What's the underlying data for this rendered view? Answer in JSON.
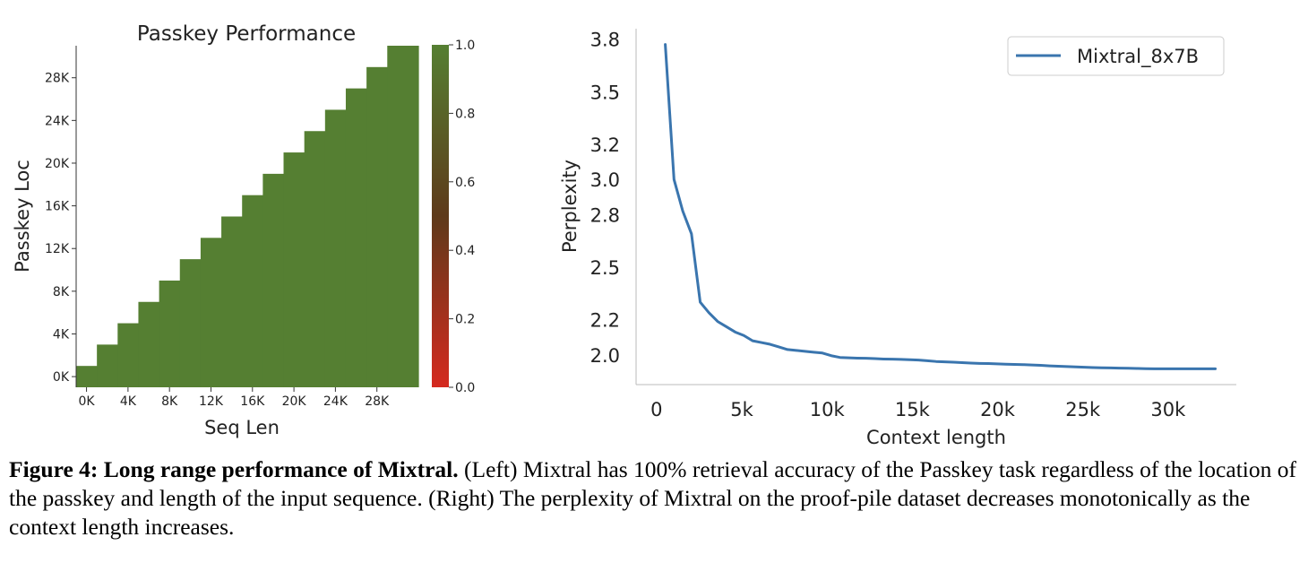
{
  "chart_data": [
    {
      "type": "heatmap",
      "title": "Passkey Performance",
      "xlabel": "Seq Len",
      "ylabel": "Passkey Loc",
      "x_ticks": [
        "0K",
        "4K",
        "8K",
        "12K",
        "16K",
        "20K",
        "24K",
        "28K"
      ],
      "y_ticks": [
        "0K",
        "4K",
        "8K",
        "12K",
        "16K",
        "20K",
        "24K",
        "28K"
      ],
      "x_range_k": [
        -1,
        32
      ],
      "y_range_k": [
        -1,
        31
      ],
      "cells": {
        "x_bin_starts_k": [
          -1,
          1,
          3,
          5,
          7,
          9,
          11,
          13,
          15,
          17,
          19,
          21,
          23,
          25,
          27,
          29
        ],
        "x_bin_ends_k": [
          1,
          3,
          5,
          7,
          9,
          11,
          13,
          15,
          17,
          19,
          21,
          23,
          25,
          27,
          29,
          32
        ],
        "filled_to_y_k": [
          1,
          3,
          5,
          7,
          9,
          11,
          13,
          15,
          17,
          19,
          21,
          23,
          25,
          27,
          29,
          31
        ],
        "value": 1.0
      },
      "colorbar": {
        "ticks": [
          "0.0",
          "0.2",
          "0.4",
          "0.6",
          "0.8",
          "1.0"
        ],
        "low_color": "#d52a1f",
        "mid_color": "#5e3a1a",
        "high_color": "#557f32"
      },
      "cell_color": "#557f32"
    },
    {
      "type": "line",
      "xlabel": "Context length",
      "ylabel": "Perplexity",
      "x_ticks": [
        "0",
        "5k",
        "10k",
        "15k",
        "20k",
        "25k",
        "30k"
      ],
      "y_ticks": [
        "2.0",
        "2.2",
        "2.5",
        "2.8",
        "3.0",
        "3.2",
        "3.5",
        "3.8"
      ],
      "xlim": [
        -1200,
        34000
      ],
      "ylim": [
        1.83,
        3.86
      ],
      "legend_position": "top-right",
      "series": [
        {
          "name": "Mixtral_8x7B",
          "color": "#3a75ae",
          "x": [
            512,
            1024,
            1536,
            2048,
            2560,
            3072,
            3584,
            4096,
            4608,
            5120,
            5632,
            6144,
            6656,
            7168,
            7680,
            8192,
            8704,
            9216,
            9728,
            10240,
            10752,
            11264,
            11776,
            12288,
            12800,
            13312,
            13824,
            14336,
            14848,
            15360,
            15872,
            16384,
            16896,
            17408,
            17920,
            18432,
            18944,
            19456,
            19968,
            20480,
            20992,
            21504,
            22016,
            22528,
            23040,
            23552,
            24064,
            24576,
            25088,
            25600,
            26112,
            26624,
            27136,
            27648,
            28160,
            28672,
            29184,
            29696,
            30208,
            30720,
            31232,
            31744,
            32256,
            32768
          ],
          "y": [
            3.77,
            3.0,
            2.82,
            2.69,
            2.3,
            2.24,
            2.19,
            2.16,
            2.13,
            2.11,
            2.08,
            2.07,
            2.06,
            2.045,
            2.03,
            2.025,
            2.02,
            2.015,
            2.01,
            1.995,
            1.985,
            1.983,
            1.981,
            1.98,
            1.978,
            1.976,
            1.975,
            1.974,
            1.972,
            1.97,
            1.966,
            1.962,
            1.96,
            1.958,
            1.955,
            1.953,
            1.951,
            1.95,
            1.948,
            1.946,
            1.945,
            1.944,
            1.942,
            1.94,
            1.937,
            1.935,
            1.933,
            1.931,
            1.929,
            1.927,
            1.926,
            1.925,
            1.924,
            1.923,
            1.922,
            1.921,
            1.92,
            1.92,
            1.92,
            1.92,
            1.92,
            1.92,
            1.92,
            1.92
          ]
        }
      ]
    }
  ],
  "caption": {
    "bold_lead": "Figure 4: Long range performance of Mixtral.",
    "text": " (Left) Mixtral has 100% retrieval accuracy of the Passkey task regardless of the location of the passkey and length of the input sequence. (Right) The perplexity of Mixtral on the proof-pile dataset decreases monotonically as the context length increases."
  }
}
